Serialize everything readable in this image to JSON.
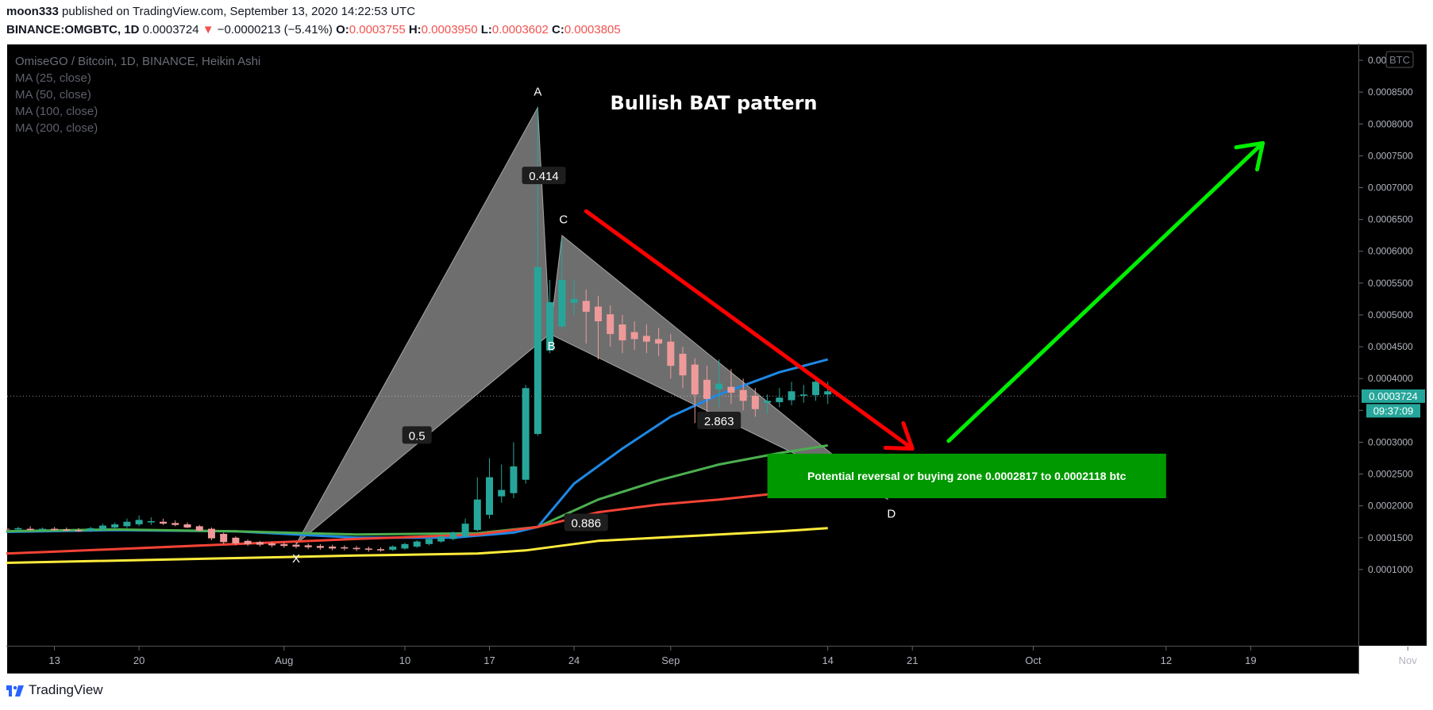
{
  "header": {
    "author": "moon333",
    "published_text": "published on TradingView.com, September 13, 2020 14:22:53 UTC",
    "symbol": "BINANCE:OMGBTC, 1D",
    "last": "0.0003724",
    "change_arrow": "▼",
    "change": "−0.0000213 (−5.41%)",
    "o_label": "O:",
    "o_value": "0.0003755",
    "h_label": "H:",
    "h_value": "0.0003950",
    "l_label": "L:",
    "l_value": "0.0003602",
    "c_label": "C:",
    "c_value": "0.0003805"
  },
  "legend": {
    "title": "OmiseGO / Bitcoin, 1D, BINANCE, Heikin Ashi",
    "ma": [
      "MA (25, close)",
      "MA (50, close)",
      "MA (100, close)",
      "MA (200, close)"
    ]
  },
  "currency_badge": "BTC",
  "footer": {
    "brand": "TradingView"
  },
  "colors": {
    "background": "#000000",
    "up": "#26a69a",
    "down": "#ef9a9a",
    "ma25": "#1e88e5",
    "ma50": "#4caf50",
    "ma100": "#f44336",
    "ma200": "#ffeb3b",
    "price_tag": "#26a69a",
    "zone": "#009900",
    "arrow_down": "#ff0000",
    "arrow_up": "#00ee00"
  },
  "chart_data": {
    "type": "candlestick",
    "title": "Bullish BAT pattern",
    "y_range": [
      6e-05,
      0.00092
    ],
    "y_ticks": [
      "0.0001000",
      "0.0001500",
      "0.0002000",
      "0.0002500",
      "0.0003000",
      "0.0003500",
      "0.0004000",
      "0.0004500",
      "0.0005000",
      "0.0005500",
      "0.0006000",
      "0.0006500",
      "0.0007000",
      "0.0007500",
      "0.0008000",
      "0.0008500",
      "0.0009000"
    ],
    "x_ticks": [
      {
        "label": "13",
        "day": -20
      },
      {
        "label": "20",
        "day": -13
      },
      {
        "label": "Aug",
        "day": -1
      },
      {
        "label": "10",
        "day": 9
      },
      {
        "label": "17",
        "day": 16
      },
      {
        "label": "24",
        "day": 23
      },
      {
        "label": "Sep",
        "day": 31
      },
      {
        "label": "14",
        "day": 44
      },
      {
        "label": "21",
        "day": 51
      },
      {
        "label": "Oct",
        "day": 61
      },
      {
        "label": "12",
        "day": 72
      },
      {
        "label": "19",
        "day": 79
      },
      {
        "label": "Nov",
        "day": 92
      }
    ],
    "current_price": "0.0003724",
    "countdown": "09:37:09",
    "candles": [
      {
        "d": -31,
        "o": 0.000156,
        "h": 0.00016,
        "l": 0.000154,
        "c": 0.000158
      },
      {
        "d": -30,
        "o": 0.000157,
        "h": 0.000161,
        "l": 0.000155,
        "c": 0.000159
      },
      {
        "d": -29,
        "o": 0.000158,
        "h": 0.000163,
        "l": 0.000156,
        "c": 0.00016
      },
      {
        "d": -28,
        "o": 0.000159,
        "h": 0.000165,
        "l": 0.000157,
        "c": 0.000162
      },
      {
        "d": -27,
        "o": 0.00016,
        "h": 0.000166,
        "l": 0.000158,
        "c": 0.000163
      },
      {
        "d": -26,
        "o": 0.000161,
        "h": 0.000168,
        "l": 0.000159,
        "c": 0.000165
      },
      {
        "d": -25,
        "o": 0.000163,
        "h": 0.00017,
        "l": 0.00016,
        "c": 0.000166
      },
      {
        "d": -24,
        "o": 0.000164,
        "h": 0.000168,
        "l": 0.000161,
        "c": 0.000163
      },
      {
        "d": -23,
        "o": 0.000163,
        "h": 0.000167,
        "l": 0.00016,
        "c": 0.000165
      },
      {
        "d": -22,
        "o": 0.000164,
        "h": 0.000168,
        "l": 0.000161,
        "c": 0.000162
      },
      {
        "d": -21,
        "o": 0.000163,
        "h": 0.000166,
        "l": 0.00016,
        "c": 0.000164
      },
      {
        "d": -20,
        "o": 0.000164,
        "h": 0.000167,
        "l": 0.000161,
        "c": 0.000162
      },
      {
        "d": -19,
        "o": 0.000163,
        "h": 0.000166,
        "l": 0.00016,
        "c": 0.000161
      },
      {
        "d": -18,
        "o": 0.000162,
        "h": 0.000165,
        "l": 0.000159,
        "c": 0.00016
      },
      {
        "d": -17,
        "o": 0.000161,
        "h": 0.000167,
        "l": 0.000159,
        "c": 0.000165
      },
      {
        "d": -16,
        "o": 0.000163,
        "h": 0.000172,
        "l": 0.000161,
        "c": 0.000169
      },
      {
        "d": -15,
        "o": 0.000166,
        "h": 0.000174,
        "l": 0.000163,
        "c": 0.000171
      },
      {
        "d": -14,
        "o": 0.000168,
        "h": 0.00018,
        "l": 0.000165,
        "c": 0.000175
      },
      {
        "d": -13,
        "o": 0.000171,
        "h": 0.000185,
        "l": 0.000168,
        "c": 0.000178
      },
      {
        "d": -12,
        "o": 0.000174,
        "h": 0.000182,
        "l": 0.00017,
        "c": 0.000176
      },
      {
        "d": -11,
        "o": 0.000175,
        "h": 0.00018,
        "l": 0.00017,
        "c": 0.000172
      },
      {
        "d": -10,
        "o": 0.000173,
        "h": 0.000177,
        "l": 0.000168,
        "c": 0.00017
      },
      {
        "d": -9,
        "o": 0.000171,
        "h": 0.000174,
        "l": 0.000165,
        "c": 0.000166
      },
      {
        "d": -8,
        "o": 0.000168,
        "h": 0.00017,
        "l": 0.00016,
        "c": 0.000161
      },
      {
        "d": -7,
        "o": 0.000164,
        "h": 0.000166,
        "l": 0.000146,
        "c": 0.000149
      },
      {
        "d": -6,
        "o": 0.000156,
        "h": 0.000158,
        "l": 0.00014,
        "c": 0.000143
      },
      {
        "d": -5,
        "o": 0.00015,
        "h": 0.000152,
        "l": 0.000138,
        "c": 0.000141
      },
      {
        "d": -4,
        "o": 0.000145,
        "h": 0.000147,
        "l": 0.000137,
        "c": 0.00014
      },
      {
        "d": -3,
        "o": 0.000143,
        "h": 0.000145,
        "l": 0.000136,
        "c": 0.000139
      },
      {
        "d": -2,
        "o": 0.000141,
        "h": 0.000144,
        "l": 0.000135,
        "c": 0.000138
      },
      {
        "d": -1,
        "o": 0.00014,
        "h": 0.000143,
        "l": 0.000134,
        "c": 0.000137
      },
      {
        "d": 0,
        "o": 0.000139,
        "h": 0.000142,
        "l": 0.000133,
        "c": 0.000136
      },
      {
        "d": 1,
        "o": 0.000138,
        "h": 0.000141,
        "l": 0.000132,
        "c": 0.000135
      },
      {
        "d": 2,
        "o": 0.000137,
        "h": 0.00014,
        "l": 0.000131,
        "c": 0.000134
      },
      {
        "d": 3,
        "o": 0.000136,
        "h": 0.000139,
        "l": 0.00013,
        "c": 0.000133
      },
      {
        "d": 4,
        "o": 0.000135,
        "h": 0.000138,
        "l": 0.00013,
        "c": 0.000133
      },
      {
        "d": 5,
        "o": 0.000134,
        "h": 0.000137,
        "l": 0.000129,
        "c": 0.000132
      },
      {
        "d": 6,
        "o": 0.000133,
        "h": 0.000136,
        "l": 0.000128,
        "c": 0.000131
      },
      {
        "d": 7,
        "o": 0.000132,
        "h": 0.000135,
        "l": 0.000128,
        "c": 0.00013
      },
      {
        "d": 8,
        "o": 0.000131,
        "h": 0.000138,
        "l": 0.000129,
        "c": 0.000136
      },
      {
        "d": 9,
        "o": 0.000133,
        "h": 0.000142,
        "l": 0.000131,
        "c": 0.00014
      },
      {
        "d": 10,
        "o": 0.000136,
        "h": 0.000146,
        "l": 0.000134,
        "c": 0.000144
      },
      {
        "d": 11,
        "o": 0.00014,
        "h": 0.00015,
        "l": 0.000138,
        "c": 0.000148
      },
      {
        "d": 12,
        "o": 0.000144,
        "h": 0.000155,
        "l": 0.000142,
        "c": 0.000152
      },
      {
        "d": 13,
        "o": 0.000148,
        "h": 0.00016,
        "l": 0.000146,
        "c": 0.000158
      },
      {
        "d": 14,
        "o": 0.000152,
        "h": 0.00018,
        "l": 0.00015,
        "c": 0.000172
      },
      {
        "d": 15,
        "o": 0.000162,
        "h": 0.000245,
        "l": 0.00016,
        "c": 0.00021
      },
      {
        "d": 16,
        "o": 0.000186,
        "h": 0.000275,
        "l": 0.00018,
        "c": 0.000245
      },
      {
        "d": 17,
        "o": 0.000215,
        "h": 0.000265,
        "l": 0.000205,
        "c": 0.000225
      },
      {
        "d": 18,
        "o": 0.00022,
        "h": 0.0003,
        "l": 0.000212,
        "c": 0.000262
      },
      {
        "d": 19,
        "o": 0.000241,
        "h": 0.00039,
        "l": 0.000235,
        "c": 0.000385
      },
      {
        "d": 20,
        "o": 0.000313,
        "h": 0.000826,
        "l": 0.00031,
        "c": 0.000575
      },
      {
        "d": 21,
        "o": 0.000444,
        "h": 0.000555,
        "l": 0.00044,
        "c": 0.00052
      },
      {
        "d": 22,
        "o": 0.000482,
        "h": 0.00062,
        "l": 0.000478,
        "c": 0.000555
      },
      {
        "d": 23,
        "o": 0.000519,
        "h": 0.000555,
        "l": 0.0005,
        "c": 0.000525
      },
      {
        "d": 24,
        "o": 0.000522,
        "h": 0.00054,
        "l": 0.000455,
        "c": 0.000505
      },
      {
        "d": 25,
        "o": 0.000513,
        "h": 0.00053,
        "l": 0.00043,
        "c": 0.00049
      },
      {
        "d": 26,
        "o": 0.000501,
        "h": 0.000515,
        "l": 0.00045,
        "c": 0.00047
      },
      {
        "d": 27,
        "o": 0.000485,
        "h": 0.0005,
        "l": 0.00044,
        "c": 0.00046
      },
      {
        "d": 28,
        "o": 0.000473,
        "h": 0.00049,
        "l": 0.000445,
        "c": 0.000462
      },
      {
        "d": 29,
        "o": 0.000467,
        "h": 0.000485,
        "l": 0.00044,
        "c": 0.000458
      },
      {
        "d": 30,
        "o": 0.000462,
        "h": 0.00048,
        "l": 0.000435,
        "c": 0.000455
      },
      {
        "d": 31,
        "o": 0.000458,
        "h": 0.00047,
        "l": 0.0004,
        "c": 0.00042
      },
      {
        "d": 32,
        "o": 0.000439,
        "h": 0.00045,
        "l": 0.000385,
        "c": 0.000405
      },
      {
        "d": 33,
        "o": 0.000422,
        "h": 0.000432,
        "l": 0.00033,
        "c": 0.000375
      },
      {
        "d": 34,
        "o": 0.000398,
        "h": 0.00042,
        "l": 0.000325,
        "c": 0.000368
      },
      {
        "d": 35,
        "o": 0.000383,
        "h": 0.00043,
        "l": 0.000355,
        "c": 0.000392
      },
      {
        "d": 36,
        "o": 0.000387,
        "h": 0.000415,
        "l": 0.00036,
        "c": 0.000378
      },
      {
        "d": 37,
        "o": 0.000382,
        "h": 0.0004,
        "l": 0.00035,
        "c": 0.000365
      },
      {
        "d": 38,
        "o": 0.000373,
        "h": 0.000385,
        "l": 0.00034,
        "c": 0.000352
      },
      {
        "d": 39,
        "o": 0.000362,
        "h": 0.000375,
        "l": 0.000345,
        "c": 0.000365
      },
      {
        "d": 40,
        "o": 0.000363,
        "h": 0.000385,
        "l": 0.000355,
        "c": 0.00037
      },
      {
        "d": 41,
        "o": 0.000366,
        "h": 0.000395,
        "l": 0.000358,
        "c": 0.00038
      },
      {
        "d": 42,
        "o": 0.000373,
        "h": 0.00039,
        "l": 0.000362,
        "c": 0.000375
      },
      {
        "d": 43,
        "o": 0.000374,
        "h": 0.000402,
        "l": 0.000365,
        "c": 0.000395
      },
      {
        "d": 44,
        "o": 0.000375,
        "h": 0.000395,
        "l": 0.00036,
        "c": 0.00038
      }
    ],
    "moving_averages": [
      {
        "name": "MA (25, close)",
        "color": "#1e88e5",
        "points": [
          [
            -31,
            0.000157
          ],
          [
            -15,
            0.000162
          ],
          [
            -5,
            0.00016
          ],
          [
            5,
            0.00015
          ],
          [
            13,
            0.00015
          ],
          [
            18,
            0.000158
          ],
          [
            20,
            0.000167
          ],
          [
            23,
            0.000235
          ],
          [
            27,
            0.00029
          ],
          [
            31,
            0.00034
          ],
          [
            35,
            0.000375
          ],
          [
            40,
            0.00041
          ],
          [
            44,
            0.00043
          ]
        ]
      },
      {
        "name": "MA (50, close)",
        "color": "#4caf50",
        "points": [
          [
            -31,
            0.000158
          ],
          [
            -15,
            0.000163
          ],
          [
            -5,
            0.00016
          ],
          [
            5,
            0.000155
          ],
          [
            15,
            0.000157
          ],
          [
            20,
            0.000167
          ],
          [
            25,
            0.00021
          ],
          [
            30,
            0.00024
          ],
          [
            35,
            0.000265
          ],
          [
            40,
            0.000283
          ],
          [
            44,
            0.000295
          ]
        ]
      },
      {
        "name": "MA (100, close)",
        "color": "#f44336",
        "points": [
          [
            -31,
            0.00012
          ],
          [
            -20,
            0.000128
          ],
          [
            -5,
            0.00014
          ],
          [
            5,
            0.000148
          ],
          [
            15,
            0.000155
          ],
          [
            20,
            0.000167
          ],
          [
            25,
            0.00019
          ],
          [
            30,
            0.000202
          ],
          [
            35,
            0.00021
          ],
          [
            40,
            0.00022
          ],
          [
            44,
            0.00023
          ]
        ]
      },
      {
        "name": "MA (200, close)",
        "color": "#ffeb3b",
        "points": [
          [
            -31,
            0.000108
          ],
          [
            -20,
            0.000112
          ],
          [
            -5,
            0.000118
          ],
          [
            5,
            0.000122
          ],
          [
            15,
            0.000125
          ],
          [
            19,
            0.00013
          ],
          [
            25,
            0.000145
          ],
          [
            30,
            0.00015
          ],
          [
            35,
            0.000155
          ],
          [
            40,
            0.00016
          ],
          [
            44,
            0.000165
          ]
        ]
      }
    ],
    "pattern": {
      "points": [
        {
          "label": "X",
          "day": 0,
          "price": 0.00014
        },
        {
          "label": "A",
          "day": 20,
          "price": 0.000826
        },
        {
          "label": "B",
          "day": 21,
          "price": 0.00047
        },
        {
          "label": "C",
          "day": 22,
          "price": 0.000625
        },
        {
          "label": "D",
          "day": 49,
          "price": 0.00021
        }
      ],
      "ratios": [
        {
          "text": "0.414",
          "day": 20.5,
          "price": 0.000718
        },
        {
          "text": "0.5",
          "day": 10,
          "price": 0.00031
        },
        {
          "text": "0.886",
          "day": 24,
          "price": 0.000173
        },
        {
          "text": "2.863",
          "day": 35,
          "price": 0.000333
        }
      ]
    },
    "zone": {
      "text": "Potential reversal or buying zone 0.0002817 to 0.0002118 btc",
      "top": 0.000282,
      "bottom": 0.000212,
      "day_start": 39,
      "day_end": 72
    },
    "arrows": [
      {
        "name": "down",
        "from": [
          24,
          0.000663
        ],
        "to": [
          51,
          0.00029
        ]
      },
      {
        "name": "up",
        "from": [
          54,
          0.000302
        ],
        "to": [
          80,
          0.00077
        ]
      }
    ]
  }
}
